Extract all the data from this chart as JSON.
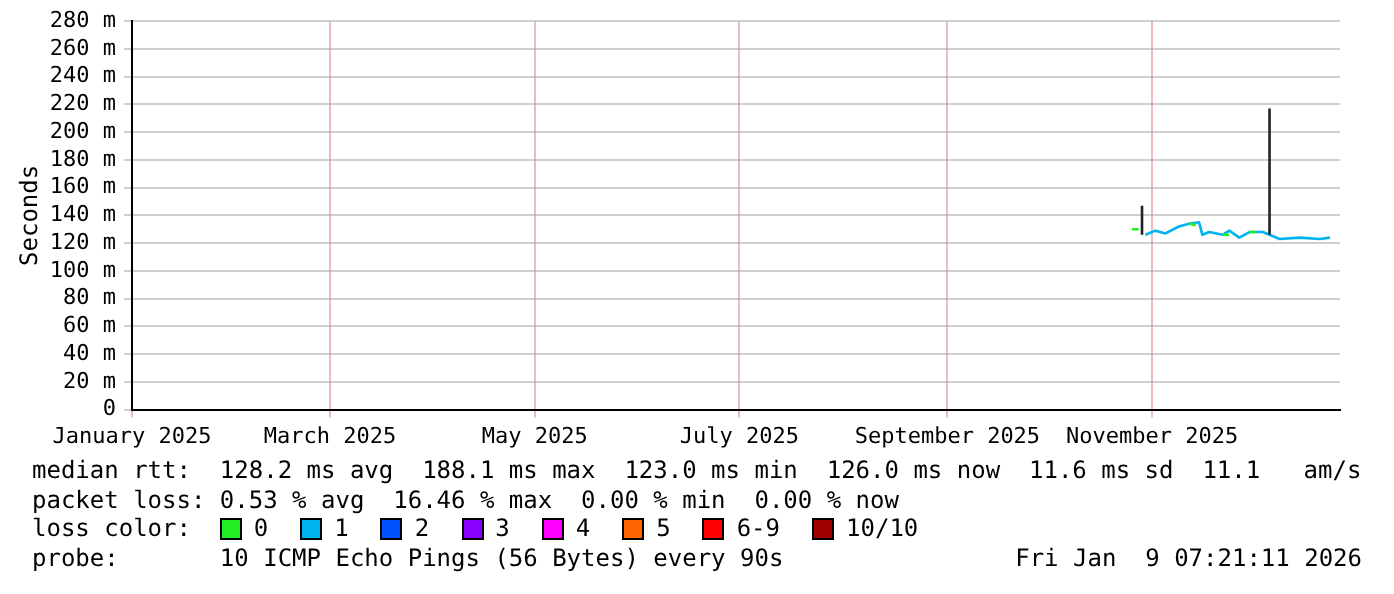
{
  "chart_data": {
    "type": "line",
    "ylabel": "Seconds",
    "legend_title": "loss color:",
    "legend": "bottom",
    "grid": true,
    "marker": "none",
    "line_style": "solid",
    "xlim": [
      "2025-01-01",
      "2025-12-27"
    ],
    "xticks": [
      {
        "value": "2025-01-01",
        "label": "January 2025"
      },
      {
        "value": "2025-03-01",
        "label": "March 2025"
      },
      {
        "value": "2025-05-01",
        "label": "May 2025"
      },
      {
        "value": "2025-07-01",
        "label": "July 2025"
      },
      {
        "value": "2025-09-01",
        "label": "September 2025"
      },
      {
        "value": "2025-11-01",
        "label": "November 2025"
      }
    ],
    "ylim": [
      0,
      280
    ],
    "yticks": [
      0,
      {
        "value": 20,
        "label": "20 m"
      },
      {
        "value": 40,
        "label": "40 m"
      },
      {
        "value": 60,
        "label": "60 m"
      },
      {
        "value": 80,
        "label": "80 m"
      },
      {
        "value": 100,
        "label": "100 m"
      },
      {
        "value": 120,
        "label": "120 m"
      },
      {
        "value": 140,
        "label": "140 m"
      },
      {
        "value": 160,
        "label": "160 m"
      },
      {
        "value": 180,
        "label": "180 m"
      },
      {
        "value": 200,
        "label": "200 m"
      },
      {
        "value": 220,
        "label": "220 m"
      },
      {
        "value": 240,
        "label": "240 m"
      },
      {
        "value": 260,
        "label": "260 m"
      },
      {
        "value": 280,
        "label": "280 m"
      }
    ],
    "series": [
      {
        "color": "#222222",
        "x": [
          "2025-10-29",
          "2025-10-29"
        ],
        "values": [
          126,
          147
        ]
      },
      {
        "color": "#222222",
        "x": [
          "2025-12-06",
          "2025-12-06"
        ],
        "values": [
          126,
          217
        ]
      },
      {
        "name": "0",
        "color": "#22ee22",
        "x": [
          "2025-10-26",
          "2025-10-28",
          "2025-10-29",
          "2025-11-12",
          "2025-11-14",
          "2025-11-21",
          "2025-11-22",
          "2025-11-24",
          "2025-11-25",
          "2025-11-30",
          "2025-12-02"
        ],
        "values": [
          130,
          130,
          null,
          134,
          133,
          null,
          126,
          126,
          null,
          128,
          128
        ]
      },
      {
        "name": "1",
        "color": "#00b4f0",
        "x": [
          "2025-10-30",
          "2025-11-02",
          "2025-11-05",
          "2025-11-09",
          "2025-11-12",
          "2025-11-15",
          "2025-11-16",
          "2025-11-18",
          "2025-11-22",
          "2025-11-24",
          "2025-11-27",
          "2025-11-30",
          "2025-12-04",
          "2025-12-06",
          "2025-12-09",
          "2025-12-15",
          "2025-12-21",
          "2025-12-24"
        ],
        "values": [
          126,
          129,
          127,
          132,
          134,
          135,
          126,
          128,
          126,
          129,
          124,
          128,
          128,
          126,
          123,
          124,
          123,
          124
        ]
      },
      {
        "name": "2",
        "color": "#0050ff"
      },
      {
        "name": "3",
        "color": "#8a00ff"
      },
      {
        "name": "4",
        "color": "#ff00ff"
      },
      {
        "name": "5",
        "color": "#ff6400"
      },
      {
        "name": "6-9",
        "color": "#ff0000"
      },
      {
        "name": "10/10",
        "color": "#a00000"
      }
    ],
    "annotations": [
      "median rtt:  128.2 ms avg  188.1 ms max  123.0 ms min  126.0 ms now  11.6 ms sd  11.1   am/s",
      "packet loss: 0.53 % avg  16.46 % max  0.00 % min  0.00 % now",
      "probe:       10 ICMP Echo Pings (56 Bytes) every 90s",
      "Fri Jan  9 07:21:11 2026"
    ]
  }
}
